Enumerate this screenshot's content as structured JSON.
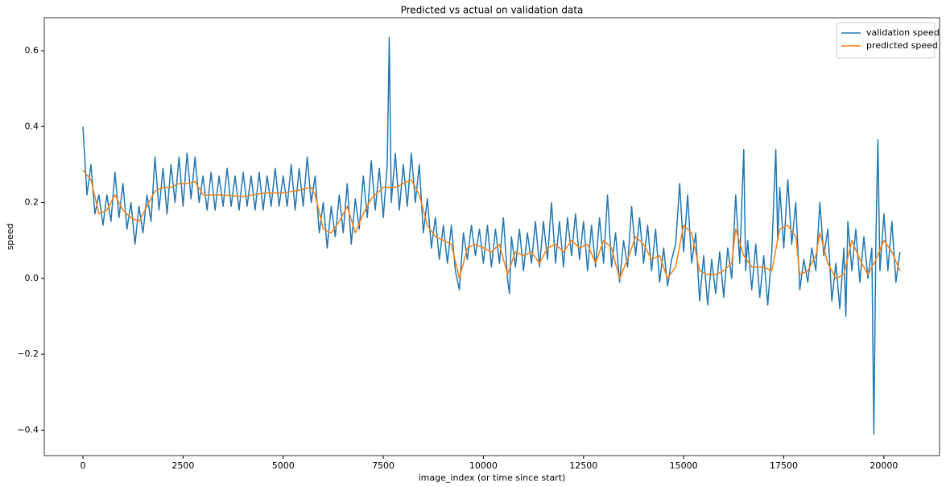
{
  "chart_data": {
    "type": "line",
    "title": "Predicted vs actual on validation data",
    "xlabel": "image_index (or time since start)",
    "ylabel": "speed",
    "xlim": [
      -965,
      21390
    ],
    "ylim": [
      -0.467,
      0.687
    ],
    "xticks": [
      0,
      2500,
      5000,
      7500,
      10000,
      12500,
      15000,
      17500,
      20000
    ],
    "yticks": [
      {
        "value": -0.4,
        "label": "−0.4"
      },
      {
        "value": -0.2,
        "label": "−0.2"
      },
      {
        "value": 0,
        "label": "0.0"
      },
      0.2,
      0.4,
      0.6
    ],
    "legend": "upper right",
    "series": [
      {
        "name": "validation speed",
        "color": "#1f77b4",
        "x": [
          0,
          100,
          200,
          300,
          400,
          500,
          600,
          700,
          800,
          900,
          1000,
          1100,
          1200,
          1300,
          1400,
          1500,
          1600,
          1700,
          1800,
          1900,
          2000,
          2100,
          2200,
          2300,
          2400,
          2500,
          2600,
          2700,
          2800,
          2900,
          3000,
          3100,
          3200,
          3300,
          3400,
          3500,
          3600,
          3700,
          3800,
          3900,
          4000,
          4100,
          4200,
          4300,
          4400,
          4500,
          4600,
          4700,
          4800,
          4900,
          5000,
          5100,
          5200,
          5300,
          5400,
          5500,
          5600,
          5700,
          5800,
          5900,
          6000,
          6100,
          6200,
          6300,
          6400,
          6500,
          6600,
          6700,
          6800,
          6900,
          7000,
          7100,
          7200,
          7300,
          7400,
          7500,
          7600,
          7650,
          7700,
          7800,
          7900,
          8000,
          8100,
          8200,
          8300,
          8400,
          8500,
          8600,
          8700,
          8800,
          8900,
          9000,
          9100,
          9200,
          9300,
          9400,
          9500,
          9600,
          9700,
          9800,
          9900,
          10000,
          10100,
          10200,
          10300,
          10400,
          10500,
          10600,
          10650,
          10700,
          10800,
          10900,
          11000,
          11100,
          11200,
          11300,
          11400,
          11500,
          11600,
          11700,
          11800,
          11900,
          12000,
          12100,
          12200,
          12300,
          12400,
          12500,
          12600,
          12700,
          12800,
          12900,
          13000,
          13100,
          13200,
          13300,
          13400,
          13500,
          13600,
          13700,
          13800,
          13900,
          14000,
          14100,
          14200,
          14300,
          14400,
          14500,
          14600,
          14700,
          14800,
          14900,
          15000,
          15100,
          15200,
          15300,
          15400,
          15500,
          15600,
          15700,
          15800,
          15900,
          16000,
          16100,
          16200,
          16300,
          16400,
          16500,
          16550,
          16600,
          16700,
          16800,
          16900,
          17000,
          17100,
          17200,
          17300,
          17350,
          17400,
          17500,
          17600,
          17700,
          17800,
          17900,
          18000,
          18100,
          18200,
          18300,
          18400,
          18500,
          18600,
          18700,
          18800,
          18900,
          19000,
          19050,
          19100,
          19200,
          19300,
          19400,
          19500,
          19600,
          19700,
          19750,
          19800,
          19850,
          19900,
          20000,
          20100,
          20200,
          20300,
          20400
        ],
        "values": [
          0.4,
          0.22,
          0.3,
          0.17,
          0.22,
          0.14,
          0.22,
          0.15,
          0.28,
          0.16,
          0.25,
          0.13,
          0.2,
          0.09,
          0.19,
          0.12,
          0.22,
          0.15,
          0.32,
          0.18,
          0.29,
          0.17,
          0.3,
          0.2,
          0.32,
          0.19,
          0.33,
          0.21,
          0.32,
          0.2,
          0.27,
          0.18,
          0.28,
          0.18,
          0.27,
          0.19,
          0.29,
          0.19,
          0.27,
          0.18,
          0.28,
          0.19,
          0.27,
          0.18,
          0.28,
          0.18,
          0.27,
          0.19,
          0.29,
          0.19,
          0.27,
          0.19,
          0.3,
          0.18,
          0.29,
          0.19,
          0.32,
          0.2,
          0.27,
          0.12,
          0.2,
          0.08,
          0.19,
          0.11,
          0.22,
          0.12,
          0.25,
          0.09,
          0.21,
          0.13,
          0.27,
          0.16,
          0.31,
          0.18,
          0.29,
          0.16,
          0.3,
          0.635,
          0.2,
          0.33,
          0.18,
          0.3,
          0.19,
          0.33,
          0.2,
          0.3,
          0.12,
          0.21,
          0.08,
          0.16,
          0.05,
          0.14,
          0.04,
          0.14,
          0.02,
          -0.03,
          0.12,
          0.05,
          0.14,
          0.06,
          0.13,
          0.04,
          0.14,
          0.03,
          0.13,
          0.04,
          0.16,
          0.0,
          -0.04,
          0.11,
          0.03,
          0.13,
          0.02,
          0.12,
          0.04,
          0.15,
          0.03,
          0.15,
          0.05,
          0.2,
          0.04,
          0.15,
          0.03,
          0.16,
          0.06,
          0.17,
          0.05,
          0.15,
          0.02,
          0.14,
          0.03,
          0.16,
          0.04,
          0.22,
          0.03,
          0.12,
          -0.01,
          0.1,
          0.03,
          0.19,
          0.06,
          0.16,
          0.04,
          0.14,
          0.02,
          0.13,
          -0.01,
          0.08,
          -0.02,
          0.05,
          0.09,
          0.25,
          0.07,
          0.22,
          0.04,
          0.12,
          -0.06,
          0.06,
          -0.07,
          0.05,
          -0.04,
          0.07,
          -0.05,
          0.08,
          0.0,
          0.22,
          0.04,
          0.34,
          0.02,
          0.1,
          -0.03,
          0.09,
          -0.05,
          0.06,
          -0.07,
          0.07,
          0.34,
          0.1,
          0.24,
          0.08,
          0.26,
          0.09,
          0.2,
          -0.03,
          0.05,
          -0.01,
          0.08,
          0.02,
          0.2,
          0.06,
          0.13,
          -0.06,
          0.04,
          -0.08,
          0.08,
          -0.1,
          0.15,
          0.02,
          0.13,
          -0.01,
          0.11,
          0.0,
          0.08,
          -0.41,
          0.1,
          0.365,
          0.02,
          0.17,
          0.02,
          0.15,
          -0.01,
          0.07
        ]
      },
      {
        "name": "predicted speed",
        "color": "#ff7f0e",
        "x": [
          0,
          200,
          400,
          600,
          800,
          1000,
          1200,
          1400,
          1600,
          1800,
          2000,
          2200,
          2400,
          2600,
          2800,
          3000,
          3200,
          3500,
          4000,
          4500,
          5000,
          5500,
          5700,
          5800,
          6000,
          6200,
          6400,
          6600,
          6800,
          7000,
          7200,
          7500,
          7800,
          8000,
          8200,
          8400,
          8600,
          8800,
          9000,
          9200,
          9400,
          9600,
          9800,
          10000,
          10200,
          10400,
          10600,
          10800,
          11000,
          11200,
          11400,
          11600,
          11800,
          12000,
          12200,
          12400,
          12600,
          12800,
          13000,
          13200,
          13400,
          13600,
          13800,
          14000,
          14200,
          14400,
          14600,
          14800,
          15000,
          15200,
          15400,
          15600,
          15800,
          16000,
          16200,
          16300,
          16500,
          16700,
          17000,
          17200,
          17400,
          17600,
          17800,
          17900,
          18100,
          18300,
          18400,
          18600,
          18800,
          19000,
          19200,
          19400,
          19600,
          19800,
          20000,
          20200,
          20400
        ],
        "values": [
          0.285,
          0.26,
          0.17,
          0.18,
          0.22,
          0.18,
          0.16,
          0.15,
          0.19,
          0.23,
          0.24,
          0.24,
          0.25,
          0.25,
          0.255,
          0.22,
          0.22,
          0.22,
          0.215,
          0.225,
          0.225,
          0.235,
          0.24,
          0.22,
          0.13,
          0.12,
          0.15,
          0.19,
          0.12,
          0.17,
          0.21,
          0.24,
          0.24,
          0.25,
          0.26,
          0.22,
          0.14,
          0.11,
          0.1,
          0.09,
          0.0,
          0.08,
          0.09,
          0.08,
          0.07,
          0.09,
          0.01,
          0.07,
          0.06,
          0.07,
          0.04,
          0.08,
          0.09,
          0.07,
          0.1,
          0.08,
          0.09,
          0.04,
          0.1,
          0.08,
          0.0,
          0.05,
          0.11,
          0.09,
          0.05,
          0.06,
          0.0,
          0.03,
          0.14,
          0.12,
          0.02,
          0.01,
          0.01,
          0.02,
          0.04,
          0.13,
          0.06,
          0.03,
          0.03,
          0.02,
          0.13,
          0.14,
          0.11,
          0.01,
          0.02,
          0.06,
          0.12,
          0.04,
          0.0,
          0.01,
          0.1,
          0.05,
          0.01,
          0.05,
          0.1,
          0.07,
          0.02
        ]
      }
    ]
  }
}
